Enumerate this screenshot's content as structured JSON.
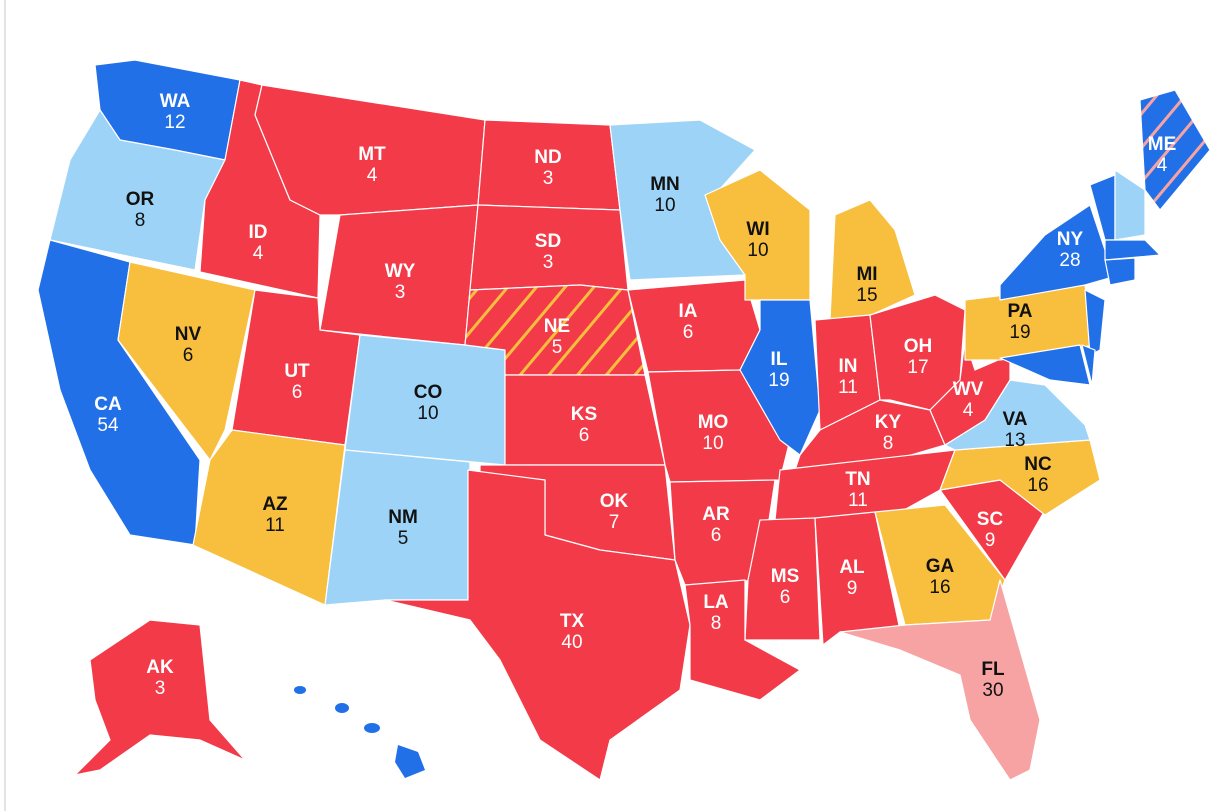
{
  "states": [
    {
      "abbr": "WA",
      "votes": 12,
      "color": "#2170e8"
    },
    {
      "abbr": "OR",
      "votes": 8,
      "color": "#9dd3f7"
    },
    {
      "abbr": "CA",
      "votes": 54,
      "color": "#2170e8"
    },
    {
      "abbr": "NV",
      "votes": 6,
      "color": "#f8be3d"
    },
    {
      "abbr": "ID",
      "votes": 4,
      "color": "#f23a48"
    },
    {
      "abbr": "MT",
      "votes": 4,
      "color": "#f23a48"
    },
    {
      "abbr": "WY",
      "votes": 3,
      "color": "#f23a48"
    },
    {
      "abbr": "UT",
      "votes": 6,
      "color": "#f23a48"
    },
    {
      "abbr": "AZ",
      "votes": 11,
      "color": "#f8be3d"
    },
    {
      "abbr": "CO",
      "votes": 10,
      "color": "#9dd3f7"
    },
    {
      "abbr": "NM",
      "votes": 5,
      "color": "#9dd3f7"
    },
    {
      "abbr": "ND",
      "votes": 3,
      "color": "#f23a48"
    },
    {
      "abbr": "SD",
      "votes": 3,
      "color": "#f23a48"
    },
    {
      "abbr": "NE",
      "votes": 5,
      "color": "#f23a48",
      "hatch": "#f8be3d"
    },
    {
      "abbr": "KS",
      "votes": 6,
      "color": "#f23a48"
    },
    {
      "abbr": "OK",
      "votes": 7,
      "color": "#f23a48"
    },
    {
      "abbr": "TX",
      "votes": 40,
      "color": "#f23a48"
    },
    {
      "abbr": "MN",
      "votes": 10,
      "color": "#9dd3f7"
    },
    {
      "abbr": "IA",
      "votes": 6,
      "color": "#f23a48"
    },
    {
      "abbr": "MO",
      "votes": 10,
      "color": "#f23a48"
    },
    {
      "abbr": "AR",
      "votes": 6,
      "color": "#f23a48"
    },
    {
      "abbr": "LA",
      "votes": 8,
      "color": "#f23a48"
    },
    {
      "abbr": "WI",
      "votes": 10,
      "color": "#f8be3d"
    },
    {
      "abbr": "IL",
      "votes": 19,
      "color": "#2170e8"
    },
    {
      "abbr": "MI",
      "votes": 15,
      "color": "#f8be3d"
    },
    {
      "abbr": "IN",
      "votes": 11,
      "color": "#f23a48"
    },
    {
      "abbr": "OH",
      "votes": 17,
      "color": "#f23a48"
    },
    {
      "abbr": "KY",
      "votes": 8,
      "color": "#f23a48"
    },
    {
      "abbr": "TN",
      "votes": 11,
      "color": "#f23a48"
    },
    {
      "abbr": "MS",
      "votes": 6,
      "color": "#f23a48"
    },
    {
      "abbr": "AL",
      "votes": 9,
      "color": "#f23a48"
    },
    {
      "abbr": "GA",
      "votes": 16,
      "color": "#f8be3d"
    },
    {
      "abbr": "FL",
      "votes": 30,
      "color": "#f7a3a3"
    },
    {
      "abbr": "SC",
      "votes": 9,
      "color": "#f23a48"
    },
    {
      "abbr": "NC",
      "votes": 16,
      "color": "#f8be3d"
    },
    {
      "abbr": "VA",
      "votes": 13,
      "color": "#9dd3f7"
    },
    {
      "abbr": "WV",
      "votes": 4,
      "color": "#f23a48"
    },
    {
      "abbr": "PA",
      "votes": 19,
      "color": "#f8be3d"
    },
    {
      "abbr": "NY",
      "votes": 28,
      "color": "#2170e8"
    },
    {
      "abbr": "ME",
      "votes": 4,
      "color": "#2170e8",
      "hatch": "#f7a3a3"
    },
    {
      "abbr": "AK",
      "votes": 3,
      "color": "#f23a48"
    }
  ]
}
